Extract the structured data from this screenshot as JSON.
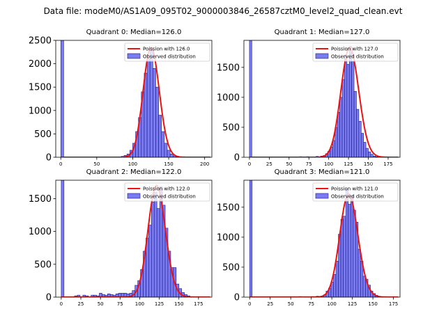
{
  "figure": {
    "suptitle": "Data file: modeM0/AS1A09_095T02_9000003846_26587cztM0_level2_quad_clean.evt"
  },
  "colors": {
    "bar_fill": "#7b7bf0",
    "bar_edge": "#1a1a8c",
    "poisson_line": "#ee1111"
  },
  "chart_data": [
    {
      "type": "bar",
      "title": "Quadrant 0: Median=126.0",
      "legend": [
        "Poission with 126.0",
        "Observed distribution"
      ],
      "legend_position": "upper right",
      "xlim": [
        -7,
        210
      ],
      "ylim": [
        0,
        2500
      ],
      "xticks": [
        0,
        50,
        100,
        150,
        200
      ],
      "yticks": [
        0,
        500,
        1000,
        1500,
        2000,
        2500
      ],
      "poisson_mean": 126.0,
      "poisson_peak": 2350,
      "bins": [
        {
          "x0": 0,
          "x1": 4,
          "count": 2500
        },
        {
          "x0": 80,
          "x1": 84,
          "count": 10
        },
        {
          "x0": 84,
          "x1": 88,
          "count": 20
        },
        {
          "x0": 88,
          "x1": 92,
          "count": 40
        },
        {
          "x0": 92,
          "x1": 96,
          "count": 70
        },
        {
          "x0": 96,
          "x1": 100,
          "count": 150
        },
        {
          "x0": 100,
          "x1": 104,
          "count": 300
        },
        {
          "x0": 104,
          "x1": 108,
          "count": 550
        },
        {
          "x0": 108,
          "x1": 112,
          "count": 850
        },
        {
          "x0": 112,
          "x1": 116,
          "count": 1400
        },
        {
          "x0": 116,
          "x1": 120,
          "count": 1800
        },
        {
          "x0": 120,
          "x1": 124,
          "count": 2100
        },
        {
          "x0": 124,
          "x1": 128,
          "count": 2300
        },
        {
          "x0": 128,
          "x1": 132,
          "count": 1900
        },
        {
          "x0": 132,
          "x1": 136,
          "count": 1500
        },
        {
          "x0": 136,
          "x1": 140,
          "count": 900
        },
        {
          "x0": 140,
          "x1": 144,
          "count": 550
        },
        {
          "x0": 144,
          "x1": 148,
          "count": 300
        },
        {
          "x0": 148,
          "x1": 152,
          "count": 150
        },
        {
          "x0": 152,
          "x1": 156,
          "count": 70
        },
        {
          "x0": 156,
          "x1": 160,
          "count": 30
        },
        {
          "x0": 160,
          "x1": 164,
          "count": 10
        }
      ]
    },
    {
      "type": "bar",
      "title": "Quadrant 1: Median=127.0",
      "legend": [
        "Poission with 127.0",
        "Observed distribution"
      ],
      "legend_position": "upper right",
      "xlim": [
        -7,
        190
      ],
      "ylim": [
        0,
        1950
      ],
      "xticks": [
        0,
        25,
        50,
        75,
        100,
        125,
        150,
        175
      ],
      "yticks": [
        0,
        500,
        1000,
        1500
      ],
      "poisson_mean": 127.0,
      "poisson_peak": 1830,
      "bins": [
        {
          "x0": 0,
          "x1": 3,
          "count": 1950
        },
        {
          "x0": 63,
          "x1": 66,
          "count": 10
        },
        {
          "x0": 72,
          "x1": 75,
          "count": 10
        },
        {
          "x0": 84,
          "x1": 87,
          "count": 15
        },
        {
          "x0": 90,
          "x1": 93,
          "count": 20
        },
        {
          "x0": 93,
          "x1": 96,
          "count": 30
        },
        {
          "x0": 96,
          "x1": 99,
          "count": 60
        },
        {
          "x0": 99,
          "x1": 102,
          "count": 100
        },
        {
          "x0": 102,
          "x1": 105,
          "count": 170
        },
        {
          "x0": 105,
          "x1": 108,
          "count": 280
        },
        {
          "x0": 108,
          "x1": 111,
          "count": 500
        },
        {
          "x0": 111,
          "x1": 114,
          "count": 750
        },
        {
          "x0": 114,
          "x1": 117,
          "count": 1000
        },
        {
          "x0": 117,
          "x1": 120,
          "count": 1300
        },
        {
          "x0": 120,
          "x1": 123,
          "count": 1700
        },
        {
          "x0": 123,
          "x1": 126,
          "count": 1550
        },
        {
          "x0": 126,
          "x1": 129,
          "count": 1850
        },
        {
          "x0": 129,
          "x1": 132,
          "count": 1600
        },
        {
          "x0": 132,
          "x1": 135,
          "count": 1100
        },
        {
          "x0": 135,
          "x1": 138,
          "count": 800
        },
        {
          "x0": 138,
          "x1": 141,
          "count": 600
        },
        {
          "x0": 141,
          "x1": 144,
          "count": 400
        },
        {
          "x0": 144,
          "x1": 147,
          "count": 250
        },
        {
          "x0": 147,
          "x1": 150,
          "count": 150
        },
        {
          "x0": 150,
          "x1": 153,
          "count": 90
        },
        {
          "x0": 153,
          "x1": 156,
          "count": 50
        },
        {
          "x0": 156,
          "x1": 159,
          "count": 20
        },
        {
          "x0": 159,
          "x1": 162,
          "count": 10
        }
      ]
    },
    {
      "type": "bar",
      "title": "Quadrant 2: Median=122.0",
      "legend": [
        "Poission with 122.0",
        "Observed distribution"
      ],
      "legend_position": "upper right",
      "xlim": [
        -7,
        192
      ],
      "ylim": [
        0,
        1780
      ],
      "xticks": [
        0,
        25,
        50,
        75,
        100,
        125,
        150,
        175
      ],
      "yticks": [
        0,
        500,
        1000,
        1500
      ],
      "poisson_mean": 122.0,
      "poisson_peak": 1700,
      "bins": [
        {
          "x0": 0,
          "x1": 3.5,
          "count": 1780
        },
        {
          "x0": 17,
          "x1": 20.5,
          "count": 20
        },
        {
          "x0": 20.5,
          "x1": 24,
          "count": 30
        },
        {
          "x0": 27.5,
          "x1": 31,
          "count": 30
        },
        {
          "x0": 31,
          "x1": 34.5,
          "count": 20
        },
        {
          "x0": 38,
          "x1": 41.5,
          "count": 30
        },
        {
          "x0": 41.5,
          "x1": 45,
          "count": 30
        },
        {
          "x0": 45,
          "x1": 48.5,
          "count": 20
        },
        {
          "x0": 48.5,
          "x1": 52,
          "count": 60
        },
        {
          "x0": 52,
          "x1": 55.5,
          "count": 40
        },
        {
          "x0": 55.5,
          "x1": 59,
          "count": 30
        },
        {
          "x0": 59,
          "x1": 62.5,
          "count": 50
        },
        {
          "x0": 62.5,
          "x1": 66,
          "count": 40
        },
        {
          "x0": 66,
          "x1": 69.5,
          "count": 30
        },
        {
          "x0": 69.5,
          "x1": 73,
          "count": 50
        },
        {
          "x0": 73,
          "x1": 76.5,
          "count": 60
        },
        {
          "x0": 76.5,
          "x1": 80,
          "count": 60
        },
        {
          "x0": 80,
          "x1": 83.5,
          "count": 60
        },
        {
          "x0": 83.5,
          "x1": 87,
          "count": 50
        },
        {
          "x0": 87,
          "x1": 90.5,
          "count": 60
        },
        {
          "x0": 90.5,
          "x1": 94,
          "count": 100
        },
        {
          "x0": 94,
          "x1": 97.5,
          "count": 180
        },
        {
          "x0": 97.5,
          "x1": 101,
          "count": 250
        },
        {
          "x0": 101,
          "x1": 104.5,
          "count": 420
        },
        {
          "x0": 104.5,
          "x1": 108,
          "count": 700
        },
        {
          "x0": 108,
          "x1": 111.5,
          "count": 900
        },
        {
          "x0": 111.5,
          "x1": 115,
          "count": 1100
        },
        {
          "x0": 115,
          "x1": 118.5,
          "count": 1450
        },
        {
          "x0": 118.5,
          "x1": 122,
          "count": 1600
        },
        {
          "x0": 122,
          "x1": 125.5,
          "count": 1350
        },
        {
          "x0": 125.5,
          "x1": 129,
          "count": 1680
        },
        {
          "x0": 129,
          "x1": 132.5,
          "count": 1400
        },
        {
          "x0": 132.5,
          "x1": 136,
          "count": 1050
        },
        {
          "x0": 136,
          "x1": 139.5,
          "count": 700
        },
        {
          "x0": 139.5,
          "x1": 143,
          "count": 450
        },
        {
          "x0": 143,
          "x1": 146.5,
          "count": 450
        },
        {
          "x0": 146.5,
          "x1": 150,
          "count": 200
        },
        {
          "x0": 150,
          "x1": 153.5,
          "count": 130
        },
        {
          "x0": 153.5,
          "x1": 157,
          "count": 70
        },
        {
          "x0": 157,
          "x1": 160.5,
          "count": 40
        },
        {
          "x0": 160.5,
          "x1": 164,
          "count": 20
        }
      ]
    },
    {
      "type": "bar",
      "title": "Quadrant 3: Median=121.0",
      "legend": [
        "Poission with 121.0",
        "Observed distribution"
      ],
      "legend_position": "upper right",
      "xlim": [
        -7,
        183
      ],
      "ylim": [
        0,
        1950
      ],
      "xticks": [
        0,
        25,
        50,
        75,
        100,
        125,
        150,
        175
      ],
      "yticks": [
        0,
        500,
        1000,
        1500
      ],
      "poisson_mean": 121.0,
      "poisson_peak": 1720,
      "bins": [
        {
          "x0": 0,
          "x1": 3,
          "count": 1950
        },
        {
          "x0": 60,
          "x1": 63,
          "count": 10
        },
        {
          "x0": 75,
          "x1": 78,
          "count": 10
        },
        {
          "x0": 81,
          "x1": 84,
          "count": 15
        },
        {
          "x0": 87,
          "x1": 90,
          "count": 20
        },
        {
          "x0": 90,
          "x1": 93,
          "count": 40
        },
        {
          "x0": 93,
          "x1": 96,
          "count": 100
        },
        {
          "x0": 96,
          "x1": 99,
          "count": 150
        },
        {
          "x0": 99,
          "x1": 102,
          "count": 250
        },
        {
          "x0": 102,
          "x1": 105,
          "count": 380
        },
        {
          "x0": 105,
          "x1": 108,
          "count": 600
        },
        {
          "x0": 108,
          "x1": 111,
          "count": 1050
        },
        {
          "x0": 111,
          "x1": 114,
          "count": 1300
        },
        {
          "x0": 114,
          "x1": 117,
          "count": 1350
        },
        {
          "x0": 117,
          "x1": 120,
          "count": 1800
        },
        {
          "x0": 120,
          "x1": 123,
          "count": 1550
        },
        {
          "x0": 123,
          "x1": 126,
          "count": 1700
        },
        {
          "x0": 126,
          "x1": 129,
          "count": 1450
        },
        {
          "x0": 129,
          "x1": 132,
          "count": 1250
        },
        {
          "x0": 132,
          "x1": 135,
          "count": 800
        },
        {
          "x0": 135,
          "x1": 138,
          "count": 600
        },
        {
          "x0": 138,
          "x1": 141,
          "count": 350
        },
        {
          "x0": 141,
          "x1": 144,
          "count": 300
        },
        {
          "x0": 144,
          "x1": 147,
          "count": 200
        },
        {
          "x0": 147,
          "x1": 150,
          "count": 100
        },
        {
          "x0": 150,
          "x1": 153,
          "count": 60
        },
        {
          "x0": 153,
          "x1": 156,
          "count": 30
        },
        {
          "x0": 156,
          "x1": 159,
          "count": 10
        }
      ]
    }
  ]
}
